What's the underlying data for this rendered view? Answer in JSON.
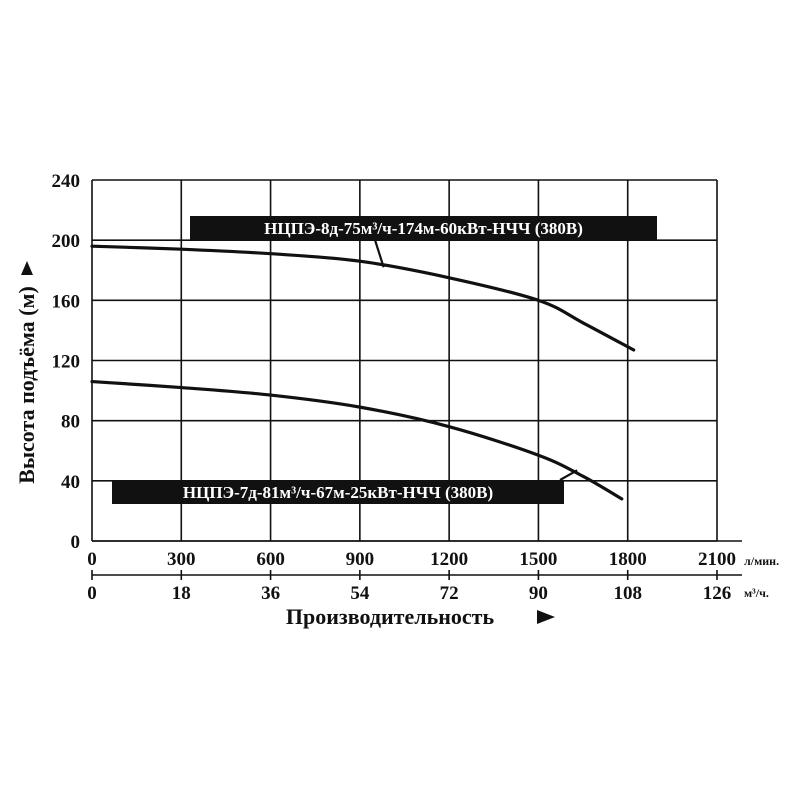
{
  "chart_data": {
    "type": "line",
    "xlabel": "Производительность",
    "ylabel": "Высота подъёма (м)",
    "xlim": [
      0,
      2100
    ],
    "ylim": [
      0,
      240
    ],
    "x_ticks": [
      "0",
      "300",
      "600",
      "900",
      "1200",
      "1500",
      "1800",
      "2100"
    ],
    "x_unit": "л/мин.",
    "x2_ticks": [
      "0",
      "18",
      "36",
      "54",
      "72",
      "90",
      "108",
      "126"
    ],
    "x2_unit": "м³/ч.",
    "y_ticks": [
      "0",
      "40",
      "80",
      "120",
      "160",
      "200",
      "240"
    ],
    "grid": true,
    "series": [
      {
        "name": "НЦПЭ-8д-75м³/ч-174м-60кВт-НЧЧ (380В)",
        "x": [
          0,
          300,
          600,
          900,
          1200,
          1500,
          1650,
          1820
        ],
        "y": [
          196,
          194,
          191,
          186,
          175,
          160,
          145,
          127
        ]
      },
      {
        "name": "НЦПЭ-7д-81м³/ч-67м-25кВт-НЧЧ (380В)",
        "x": [
          0,
          300,
          600,
          900,
          1200,
          1500,
          1650,
          1780
        ],
        "y": [
          106,
          102,
          97,
          89,
          76,
          57,
          43,
          28
        ]
      }
    ]
  }
}
